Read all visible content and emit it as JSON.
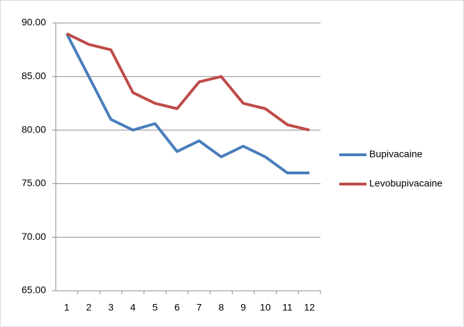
{
  "chart_data": {
    "type": "line",
    "categories": [
      "1",
      "2",
      "3",
      "4",
      "5",
      "6",
      "7",
      "8",
      "9",
      "10",
      "11",
      "12"
    ],
    "series": [
      {
        "name": "Bupivacaine",
        "color": "#4a7ebb",
        "values": [
          89,
          85,
          81,
          80,
          80.6,
          78,
          79,
          77.5,
          78.5,
          77.5,
          76,
          76
        ]
      },
      {
        "name": "Levobupivacaine",
        "color": "#be4b48",
        "values": [
          89,
          88,
          87.5,
          83.5,
          82.5,
          82,
          84.5,
          85,
          82.5,
          82,
          80.5,
          80
        ]
      }
    ],
    "ylim": [
      65,
      90
    ],
    "yticks": [
      {
        "value": 65,
        "label": "65.00"
      },
      {
        "value": 70,
        "label": "70.00"
      },
      {
        "value": 75,
        "label": "75.00"
      },
      {
        "value": 80,
        "label": "80.00"
      },
      {
        "value": 85,
        "label": "85.00"
      },
      {
        "value": 90,
        "label": "90.00"
      }
    ],
    "grid": true,
    "legend": "right"
  }
}
